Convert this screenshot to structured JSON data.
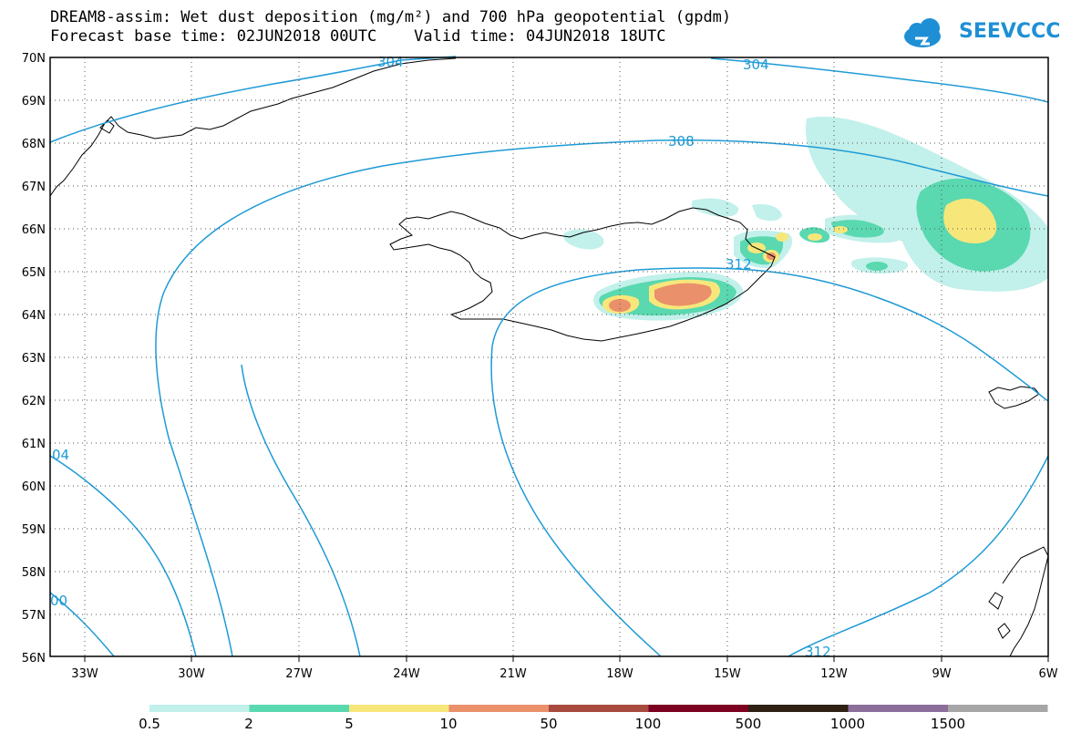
{
  "title": {
    "line1": "DREAM8-assim: Wet dust deposition (mg/m²) and 700 hPa geopotential (gpdm)",
    "line2": "Forecast base time: 02JUN2018 00UTC    Valid time: 04JUN2018 18UTC"
  },
  "logo": {
    "text": "SEEVCCC",
    "icon": "cloud-icon",
    "color": "#1e8fd5"
  },
  "axes": {
    "lat_labels": [
      "70N",
      "69N",
      "68N",
      "67N",
      "66N",
      "65N",
      "64N",
      "63N",
      "62N",
      "61N",
      "60N",
      "59N",
      "58N",
      "57N",
      "56N"
    ],
    "lon_labels": [
      "33W",
      "30W",
      "27W",
      "24W",
      "21W",
      "18W",
      "15W",
      "12W",
      "9W",
      "6W"
    ],
    "lat_range": [
      56,
      70
    ],
    "lon_range": [
      -34.5,
      -6
    ],
    "grid": "dotted"
  },
  "contours": {
    "color": "#1e9ad6",
    "labels": [
      "304",
      "304",
      "308",
      "312",
      "312",
      "04",
      "00"
    ]
  },
  "legend": {
    "labels": [
      "0.5",
      "2",
      "5",
      "10",
      "50",
      "100",
      "500",
      "1000",
      "1500"
    ],
    "colors": [
      "#c2f0ea",
      "#5ad8b0",
      "#f7e77b",
      "#ea906a",
      "#a84a3e",
      "#7c0020",
      "#2e2012",
      "#8c6e9b",
      "#a6a6a6"
    ]
  }
}
